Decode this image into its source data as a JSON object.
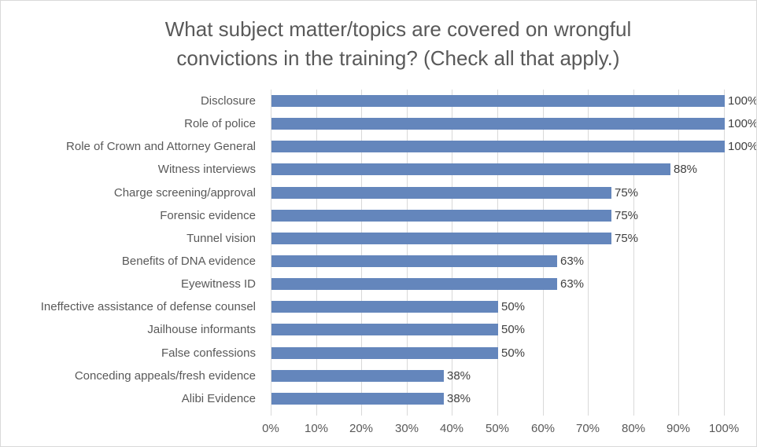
{
  "title": "What subject matter/topics are covered on wrongful convictions in the training? (Check all that apply.)",
  "chart_data": {
    "type": "bar",
    "orientation": "horizontal",
    "title": "What subject matter/topics are covered on wrongful convictions in the training? (Check all that apply.)",
    "categories": [
      "Disclosure",
      "Role of police",
      "Role of Crown and Attorney General",
      "Witness interviews",
      "Charge screening/approval",
      "Forensic evidence",
      "Tunnel vision",
      "Benefits of DNA evidence",
      "Eyewitness ID",
      "Ineffective assistance of defense counsel",
      "Jailhouse informants",
      "False confessions",
      "Conceding appeals/fresh evidence",
      "Alibi Evidence"
    ],
    "values": [
      100,
      100,
      100,
      88,
      75,
      75,
      75,
      63,
      63,
      50,
      50,
      50,
      38,
      38
    ],
    "data_labels": [
      "100%",
      "100%",
      "100%",
      "88%",
      "75%",
      "75%",
      "75%",
      "63%",
      "63%",
      "50%",
      "50%",
      "50%",
      "38%",
      "38%"
    ],
    "x_ticks": [
      "0%",
      "10%",
      "20%",
      "30%",
      "40%",
      "50%",
      "60%",
      "70%",
      "80%",
      "90%",
      "100%"
    ],
    "xlim": [
      0,
      100
    ],
    "grid": true,
    "legend": false,
    "colors": {
      "bar": "#6486bc",
      "gridline": "#d9d9d9",
      "border": "#d9d9d9",
      "title_text": "#595959",
      "axis_text": "#595959",
      "data_label_text": "#404040",
      "background": "#ffffff"
    }
  }
}
